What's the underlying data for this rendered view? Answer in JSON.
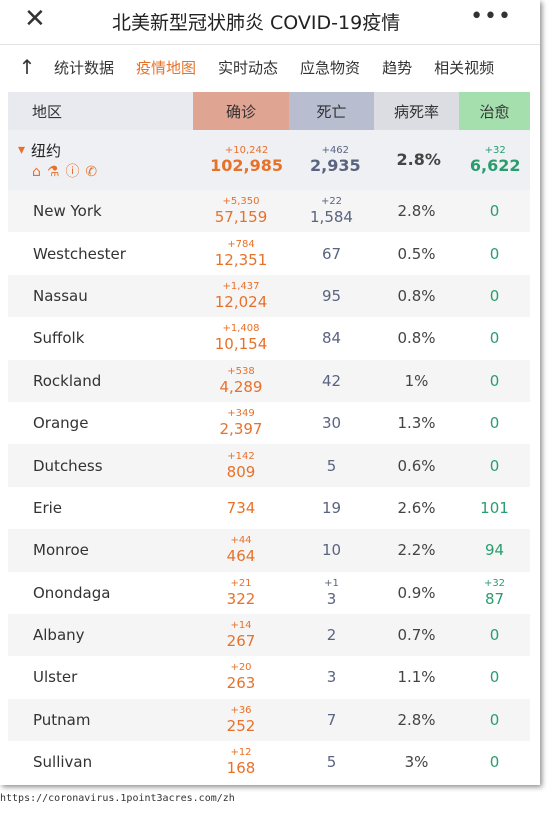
{
  "header": {
    "title": "北美新型冠状肺炎 COVID-19疫情"
  },
  "tabs": {
    "items": [
      "统计数据",
      "疫情地图",
      "实时动态",
      "应急物资",
      "趋势",
      "相关视频"
    ],
    "active": 1
  },
  "table": {
    "columns": [
      "地区",
      "确诊",
      "死亡",
      "病死率",
      "治愈"
    ],
    "summary": {
      "name": "纽约",
      "confirmed_new": "+10,242",
      "confirmed": "102,985",
      "deaths_new": "+462",
      "deaths": "2,935",
      "rate": "2.8%",
      "recovered_new": "+32",
      "recovered": "6,622"
    },
    "rows": [
      {
        "name": "New York",
        "confirmed_new": "+5,350",
        "confirmed": "57,159",
        "deaths_new": "+22",
        "deaths": "1,584",
        "rate": "2.8%",
        "recovered": "0"
      },
      {
        "name": "Westchester",
        "confirmed_new": "+784",
        "confirmed": "12,351",
        "deaths": "67",
        "rate": "0.5%",
        "recovered": "0"
      },
      {
        "name": "Nassau",
        "confirmed_new": "+1,437",
        "confirmed": "12,024",
        "deaths": "95",
        "rate": "0.8%",
        "recovered": "0"
      },
      {
        "name": "Suffolk",
        "confirmed_new": "+1,408",
        "confirmed": "10,154",
        "deaths": "84",
        "rate": "0.8%",
        "recovered": "0"
      },
      {
        "name": "Rockland",
        "confirmed_new": "+538",
        "confirmed": "4,289",
        "deaths": "42",
        "rate": "1%",
        "recovered": "0"
      },
      {
        "name": "Orange",
        "confirmed_new": "+349",
        "confirmed": "2,397",
        "deaths": "30",
        "rate": "1.3%",
        "recovered": "0"
      },
      {
        "name": "Dutchess",
        "confirmed_new": "+142",
        "confirmed": "809",
        "deaths": "5",
        "rate": "0.6%",
        "recovered": "0"
      },
      {
        "name": "Erie",
        "confirmed": "734",
        "deaths": "19",
        "rate": "2.6%",
        "recovered": "101"
      },
      {
        "name": "Monroe",
        "confirmed_new": "+44",
        "confirmed": "464",
        "deaths": "10",
        "rate": "2.2%",
        "recovered": "94"
      },
      {
        "name": "Onondaga",
        "confirmed_new": "+21",
        "confirmed": "322",
        "deaths_new": "+1",
        "deaths": "3",
        "rate": "0.9%",
        "recovered_new": "+32",
        "recovered": "87"
      },
      {
        "name": "Albany",
        "confirmed_new": "+14",
        "confirmed": "267",
        "deaths": "2",
        "rate": "0.7%",
        "recovered": "0"
      },
      {
        "name": "Ulster",
        "confirmed_new": "+20",
        "confirmed": "263",
        "deaths": "3",
        "rate": "1.1%",
        "recovered": "0"
      },
      {
        "name": "Putnam",
        "confirmed_new": "+36",
        "confirmed": "252",
        "deaths": "7",
        "rate": "2.8%",
        "recovered": "0"
      },
      {
        "name": "Sullivan",
        "confirmed_new": "+12",
        "confirmed": "168",
        "deaths": "5",
        "rate": "3%",
        "recovered": "0"
      }
    ]
  },
  "footer": {
    "url": "https://coronavirus.1point3acres.com/zh"
  }
}
